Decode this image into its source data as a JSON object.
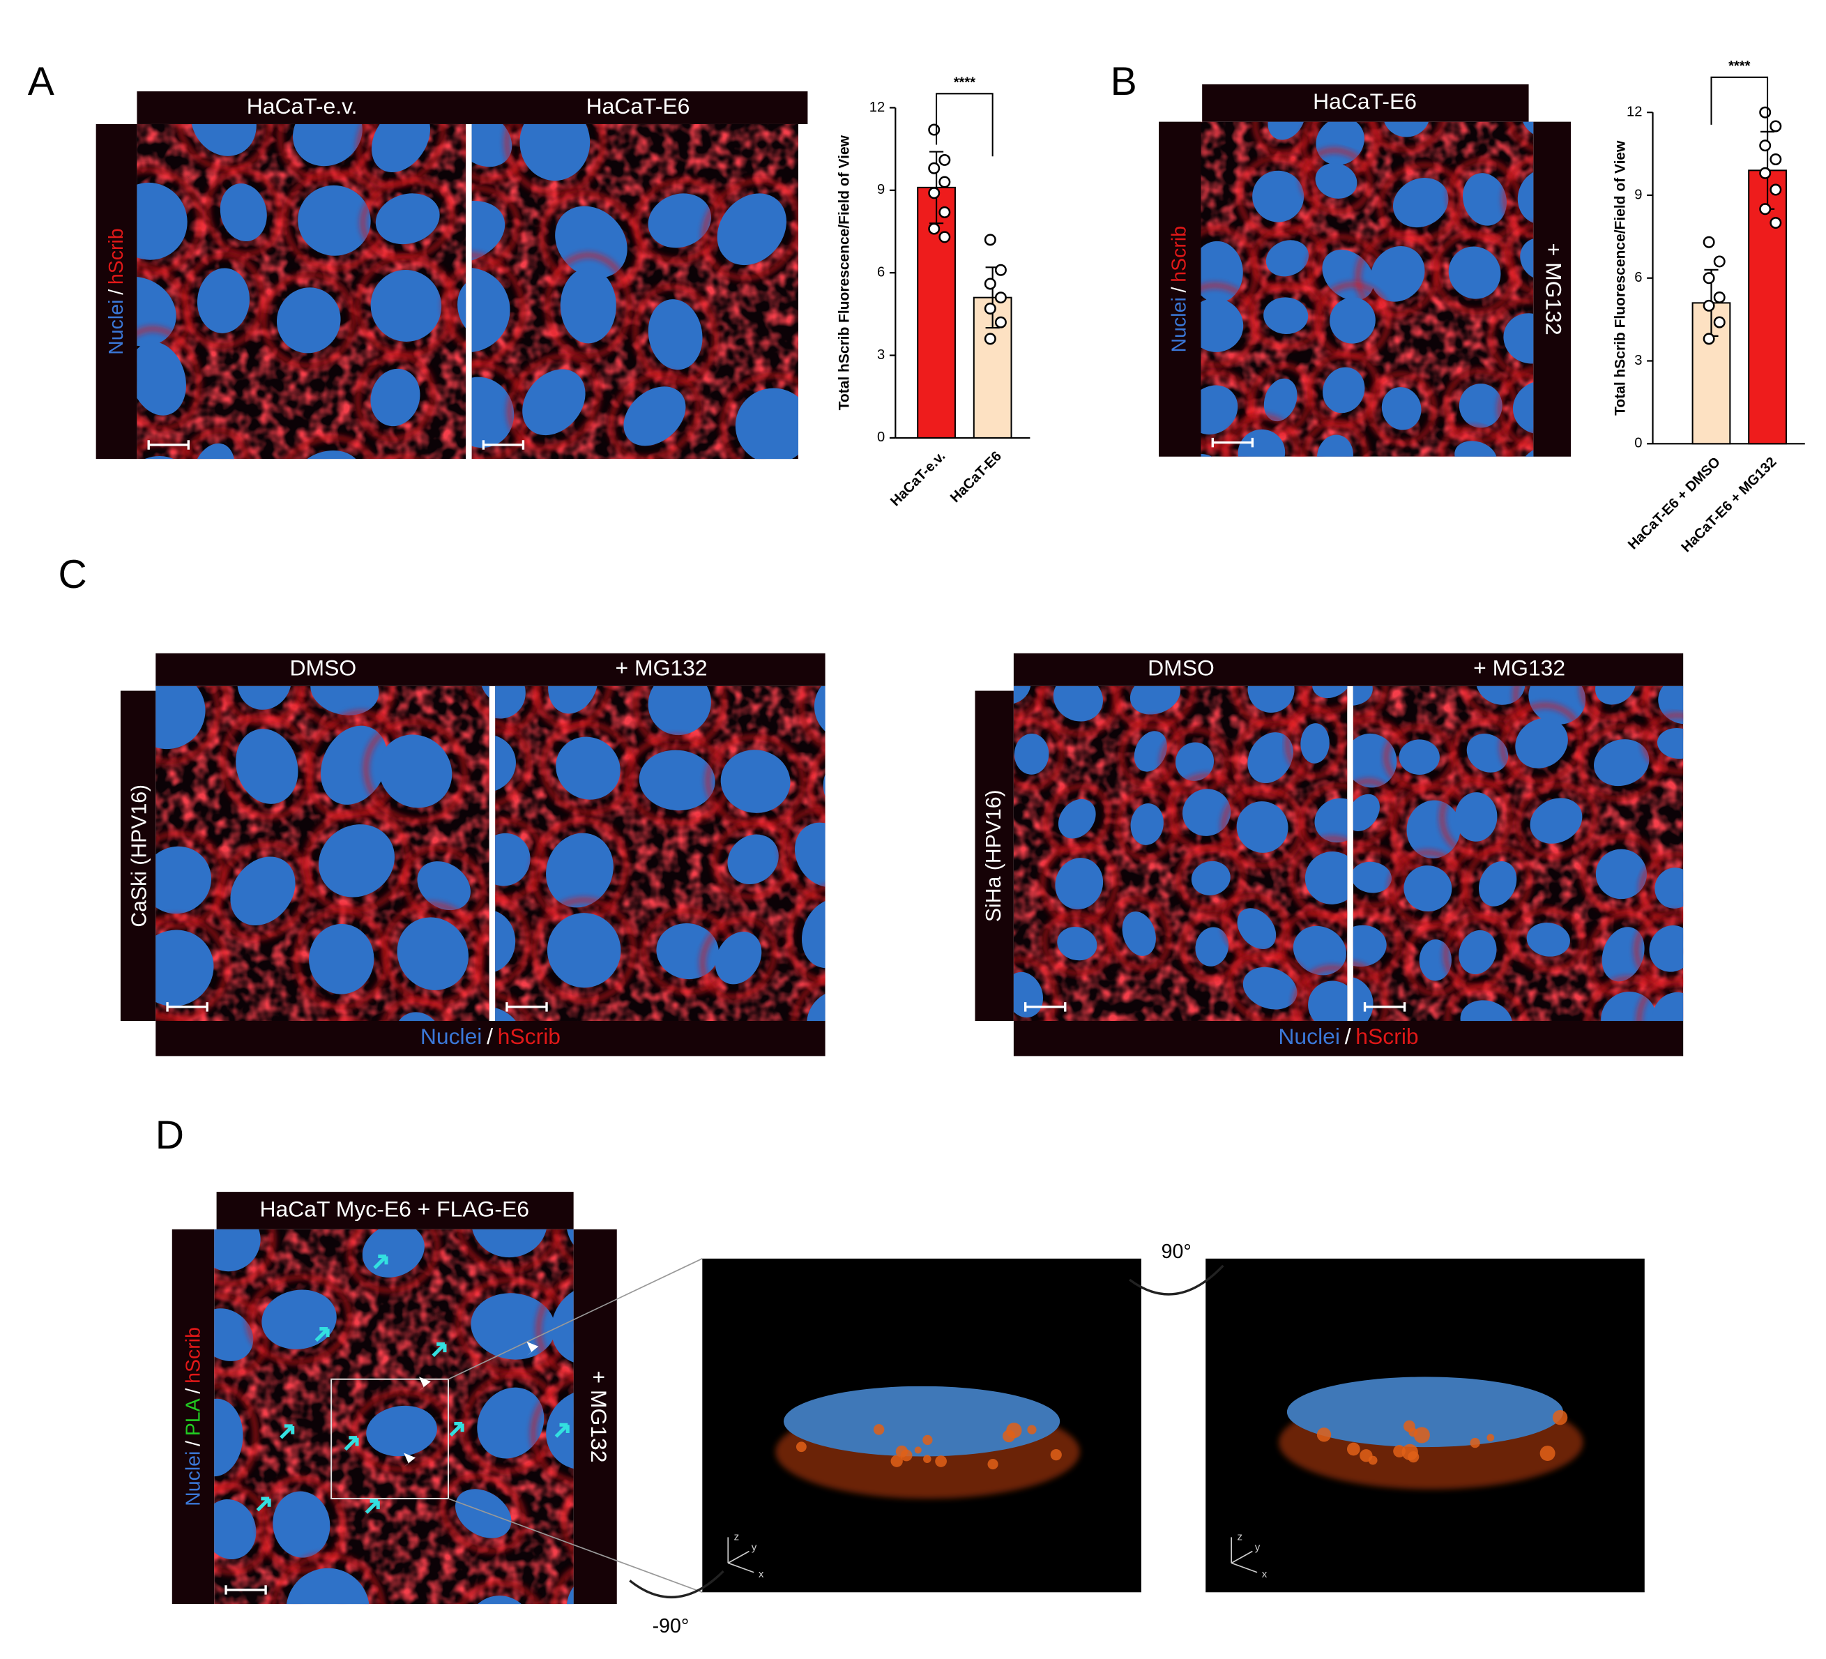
{
  "panels": [
    {
      "letter": "A",
      "header": [
        "HaCaT-e.v.",
        "HaCaT-E6"
      ],
      "stain": [
        {
          "text": "Nuclei",
          "color": "#3b78d8"
        },
        {
          "text": "/",
          "color": "#ffffff"
        },
        {
          "text": "hScrib",
          "color": "#e01818"
        }
      ]
    },
    {
      "letter": "B",
      "header": [
        "HaCaT-E6"
      ],
      "side_label": "+ MG132",
      "stain": [
        {
          "text": "Nuclei",
          "color": "#3b78d8"
        },
        {
          "text": "/",
          "color": "#ffffff"
        },
        {
          "text": "hScrib",
          "color": "#e01818"
        }
      ]
    },
    {
      "letter": "C",
      "groups": [
        {
          "header": [
            "DMSO",
            "+ MG132"
          ],
          "side_label": "CaSki (HPV16)",
          "stain": [
            {
              "text": "Nuclei",
              "color": "#3b78d8"
            },
            {
              "text": "/",
              "color": "#ffffff"
            },
            {
              "text": "hScrib",
              "color": "#e01818"
            }
          ]
        },
        {
          "header": [
            "DMSO",
            "+ MG132"
          ],
          "side_label": "SiHa (HPV16)",
          "stain": [
            {
              "text": "Nuclei",
              "color": "#3b78d8"
            },
            {
              "text": "/",
              "color": "#ffffff"
            },
            {
              "text": "hScrib",
              "color": "#e01818"
            }
          ]
        }
      ]
    },
    {
      "letter": "D",
      "header": [
        "HaCaT Myc-E6 + FLAG-E6"
      ],
      "side_label": "+ MG132",
      "stain": [
        {
          "text": "Nuclei",
          "color": "#3b78d8"
        },
        {
          "text": "/",
          "color": "#ffffff"
        },
        {
          "text": "PLA",
          "color": "#22cc22"
        },
        {
          "text": "/",
          "color": "#ffffff"
        },
        {
          "text": "hScrib",
          "color": "#e01818"
        }
      ],
      "rotations": [
        "90°",
        "-90°"
      ],
      "axes_labels": [
        "z",
        "y",
        "x"
      ]
    }
  ],
  "chart_data": [
    {
      "type": "bar",
      "ylabel": "Total hScrib Fluorescence/Field of View",
      "categories": [
        "HaCaT-e.v.",
        "HaCaT-E6"
      ],
      "values": [
        9.1,
        5.1
      ],
      "errors": [
        1.3,
        1.1
      ],
      "colors": [
        "#ee1c1c",
        "#fde1c2"
      ],
      "points": [
        [
          11.2,
          10.1,
          9.8,
          9.3,
          8.9,
          8.2,
          7.6,
          7.3
        ],
        [
          7.2,
          6.1,
          5.6,
          5.1,
          4.7,
          4.2,
          3.6
        ]
      ],
      "significance": "****",
      "ylim": [
        0,
        12
      ],
      "yticks": [
        0,
        3,
        6,
        9,
        12
      ]
    },
    {
      "type": "bar",
      "ylabel": "Total hScrib Fluorescence/Field of View",
      "categories": [
        "HaCaT-E6 + DMSO",
        "HaCaT-E6 + MG132"
      ],
      "values": [
        5.1,
        9.9
      ],
      "errors": [
        1.2,
        1.4
      ],
      "colors": [
        "#fde1c2",
        "#ee1c1c"
      ],
      "points": [
        [
          7.3,
          6.6,
          6.0,
          5.3,
          5.0,
          4.4,
          3.8
        ],
        [
          12.0,
          11.5,
          10.8,
          10.3,
          9.8,
          9.2,
          8.5,
          8.0
        ]
      ],
      "significance": "****",
      "ylim": [
        0,
        12
      ],
      "yticks": [
        0,
        3,
        6,
        9,
        12
      ]
    }
  ]
}
